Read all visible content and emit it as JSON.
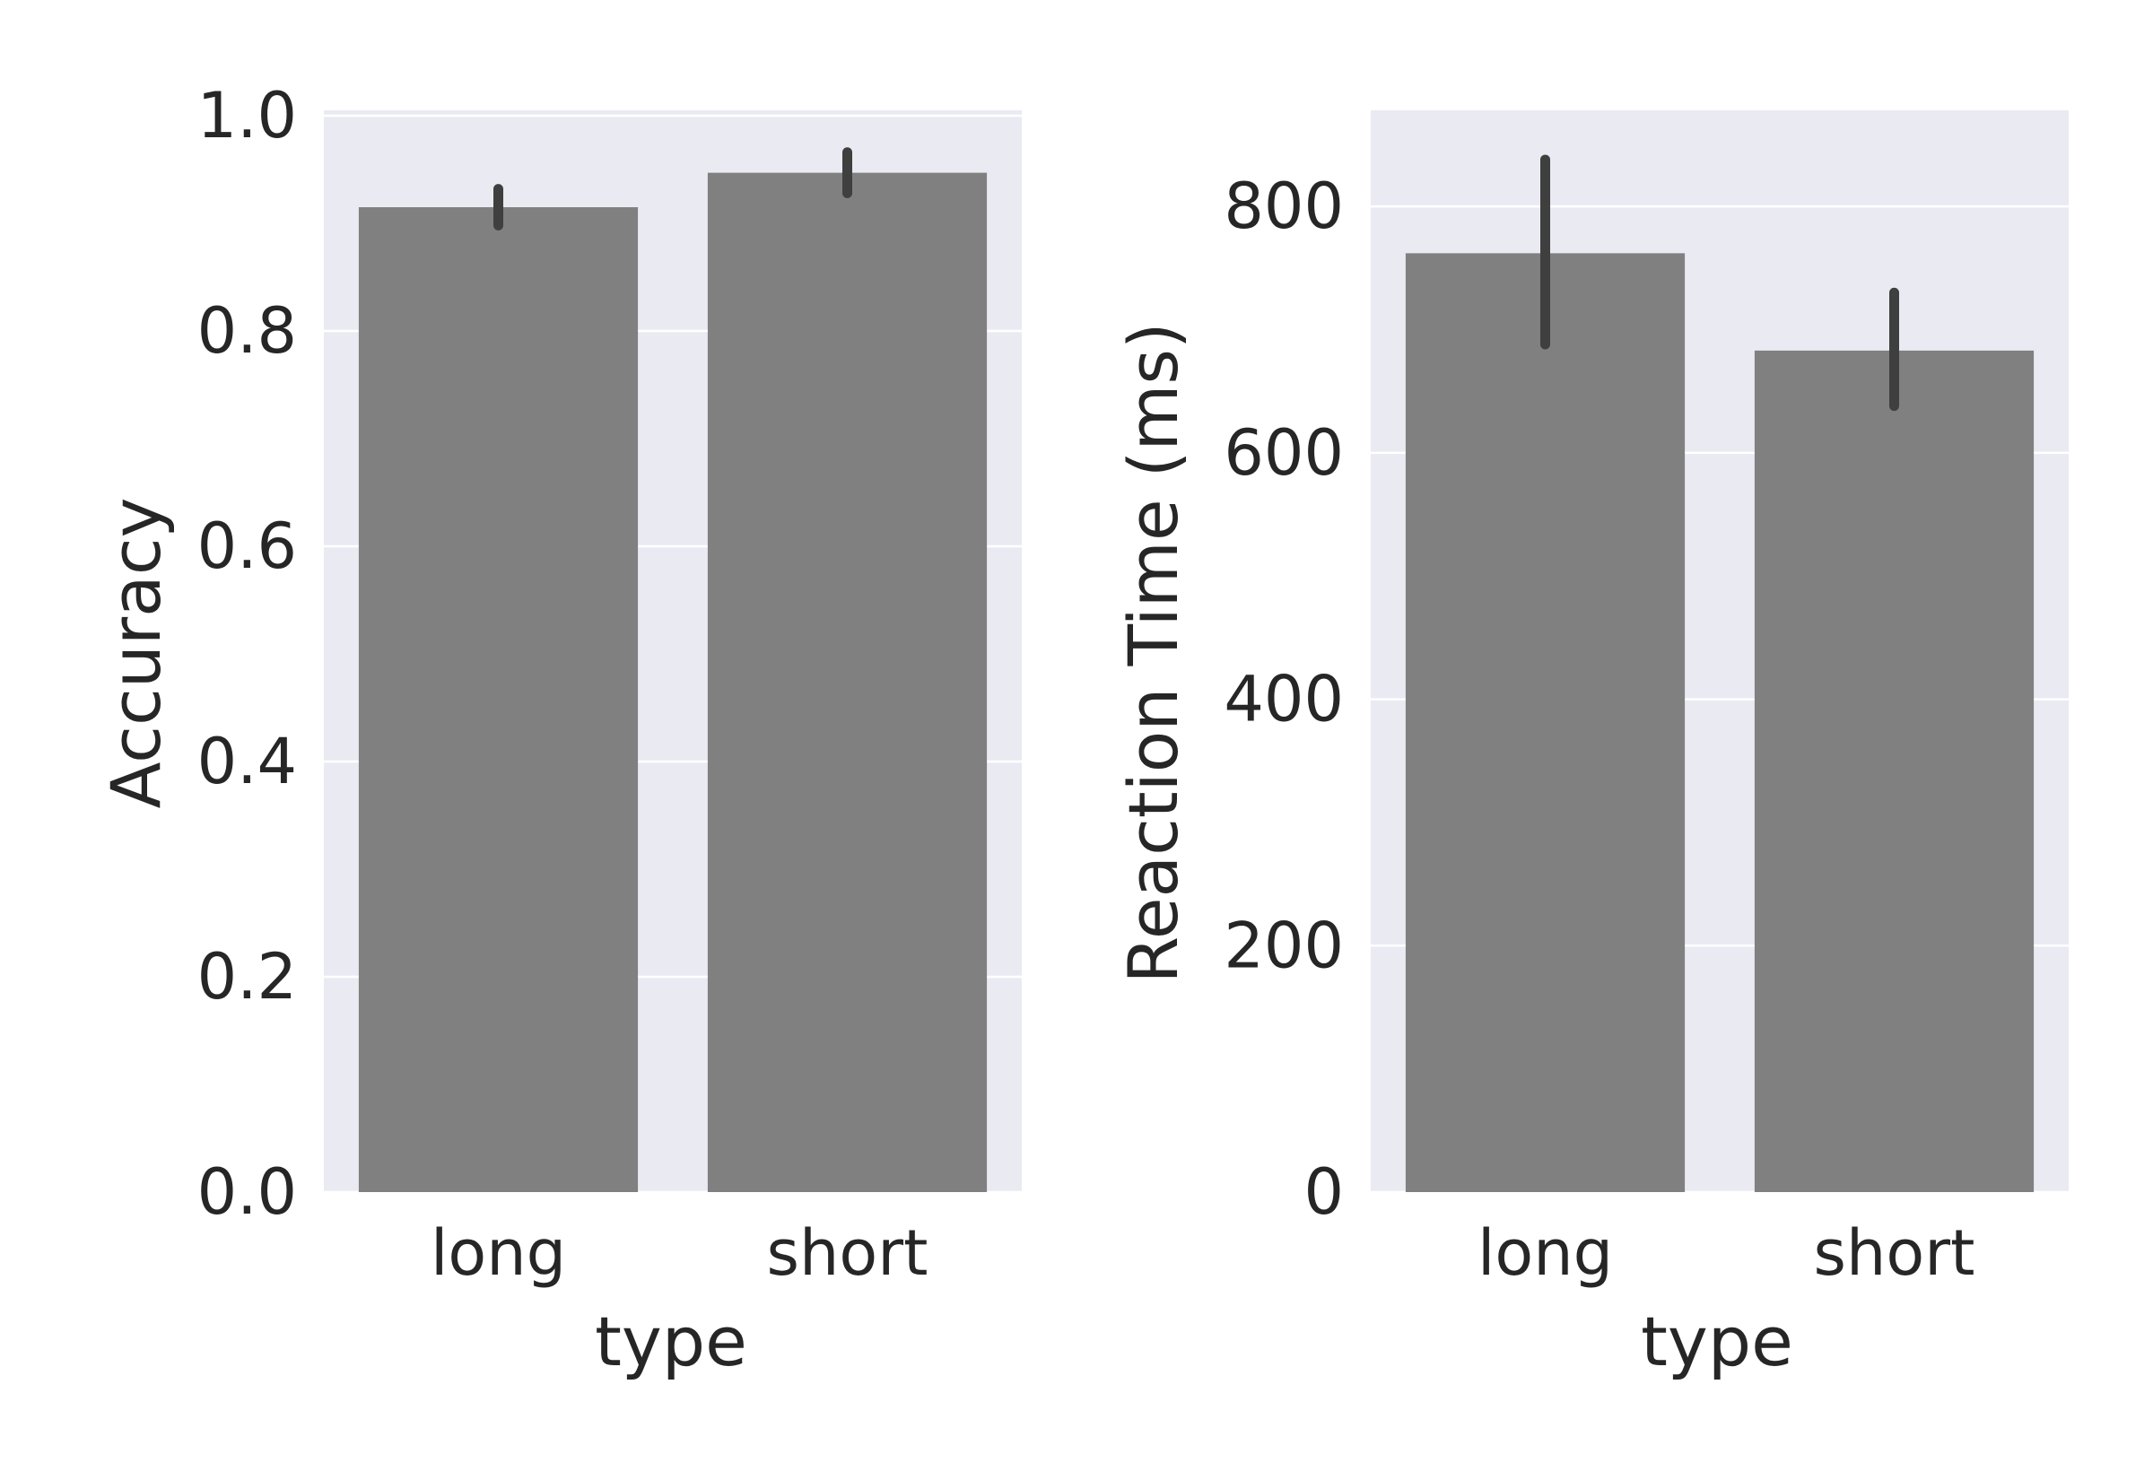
{
  "colors": {
    "panel_background": "#EAEAF2",
    "gridline": "#FFFFFF",
    "bar": "#808080",
    "errorbar": "#3F3F3F",
    "text": "#262626"
  },
  "chart_data": [
    {
      "type": "bar",
      "categories": [
        "long",
        "short"
      ],
      "values": [
        0.915,
        0.947
      ],
      "error_bars": [
        [
          0.898,
          0.932
        ],
        [
          0.928,
          0.966
        ]
      ],
      "xlabel": "type",
      "ylabel": "Accuracy",
      "ylim": [
        0,
        1.005
      ],
      "yticks": [
        0,
        0.2,
        0.4,
        0.6,
        0.8,
        1.0
      ],
      "ytick_labels": [
        "0.0",
        "0.2",
        "0.4",
        "0.6",
        "0.8",
        "1.0"
      ],
      "grid": true
    },
    {
      "type": "bar",
      "categories": [
        "long",
        "short"
      ],
      "values": [
        762,
        683
      ],
      "error_bars": [
        [
          688,
          838
        ],
        [
          638,
          730
        ]
      ],
      "xlabel": "type",
      "ylabel": "Reaction Time (ms)",
      "ylim": [
        0,
        878
      ],
      "yticks": [
        0,
        200,
        400,
        600,
        800
      ],
      "ytick_labels": [
        "0",
        "200",
        "400",
        "600",
        "800"
      ],
      "grid": true
    }
  ]
}
